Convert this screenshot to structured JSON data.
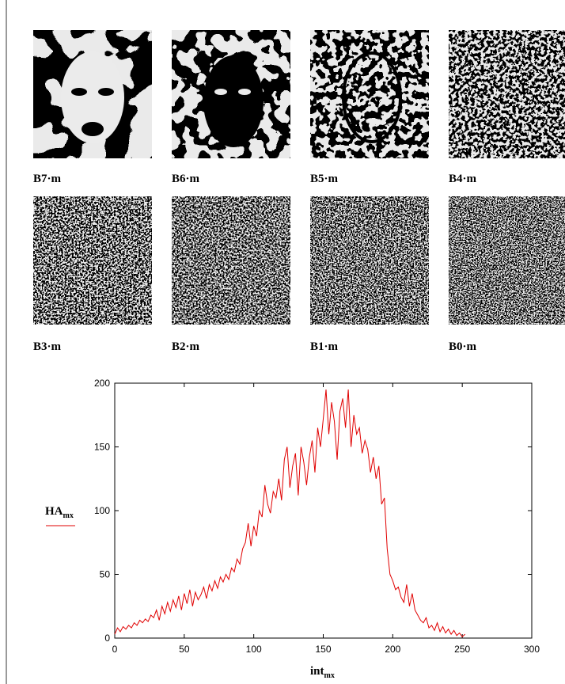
{
  "images": [
    {
      "label": "B7·m"
    },
    {
      "label": "B6·m"
    },
    {
      "label": "B5·m"
    },
    {
      "label": "B4·m"
    },
    {
      "label": "B3·m"
    },
    {
      "label": "B2·m"
    },
    {
      "label": "B1·m"
    },
    {
      "label": "B0·m"
    }
  ],
  "chart_data": {
    "type": "line",
    "x_label": {
      "main": "int",
      "sub": "mx"
    },
    "x": [
      0,
      2,
      4,
      6,
      8,
      10,
      12,
      14,
      16,
      18,
      20,
      22,
      24,
      26,
      28,
      30,
      32,
      34,
      36,
      38,
      40,
      42,
      44,
      46,
      48,
      50,
      52,
      54,
      56,
      58,
      60,
      62,
      64,
      66,
      68,
      70,
      72,
      74,
      76,
      78,
      80,
      82,
      84,
      86,
      88,
      90,
      92,
      94,
      96,
      98,
      100,
      102,
      104,
      106,
      108,
      110,
      112,
      114,
      116,
      118,
      120,
      122,
      124,
      126,
      128,
      130,
      132,
      134,
      136,
      138,
      140,
      142,
      144,
      146,
      148,
      150,
      152,
      154,
      156,
      158,
      160,
      162,
      164,
      166,
      168,
      170,
      172,
      174,
      176,
      178,
      180,
      182,
      184,
      186,
      188,
      190,
      192,
      194,
      196,
      198,
      200,
      202,
      204,
      206,
      208,
      210,
      212,
      214,
      216,
      218,
      220,
      222,
      224,
      226,
      228,
      230,
      232,
      234,
      236,
      238,
      240,
      242,
      244,
      246,
      248,
      250,
      252
    ],
    "series": [
      {
        "name": "HA",
        "name_subscript": "mx",
        "color": "#e00000",
        "values": [
          3,
          8,
          5,
          9,
          7,
          10,
          8,
          12,
          10,
          14,
          12,
          15,
          13,
          18,
          16,
          22,
          14,
          25,
          19,
          28,
          21,
          30,
          24,
          33,
          22,
          35,
          27,
          38,
          25,
          36,
          30,
          34,
          40,
          31,
          42,
          37,
          45,
          39,
          48,
          44,
          50,
          46,
          55,
          52,
          62,
          58,
          70,
          75,
          90,
          72,
          88,
          80,
          100,
          95,
          120,
          105,
          98,
          115,
          110,
          125,
          108,
          140,
          150,
          118,
          135,
          145,
          112,
          150,
          138,
          120,
          142,
          155,
          130,
          165,
          150,
          172,
          195,
          160,
          185,
          170,
          140,
          178,
          188,
          165,
          195,
          150,
          175,
          160,
          165,
          145,
          155,
          148,
          130,
          142,
          125,
          135,
          105,
          110,
          70,
          50,
          45,
          38,
          40,
          32,
          28,
          42,
          25,
          35,
          22,
          18,
          14,
          12,
          16,
          8,
          10,
          6,
          12,
          5,
          9,
          4,
          7,
          3,
          6,
          2,
          4,
          1,
          3
        ]
      }
    ],
    "xlim": [
      0,
      300
    ],
    "xticks": [
      0,
      50,
      100,
      150,
      200,
      250,
      300
    ],
    "ylim": [
      0,
      200
    ],
    "yticks": [
      0,
      50,
      100,
      150,
      200
    ]
  }
}
